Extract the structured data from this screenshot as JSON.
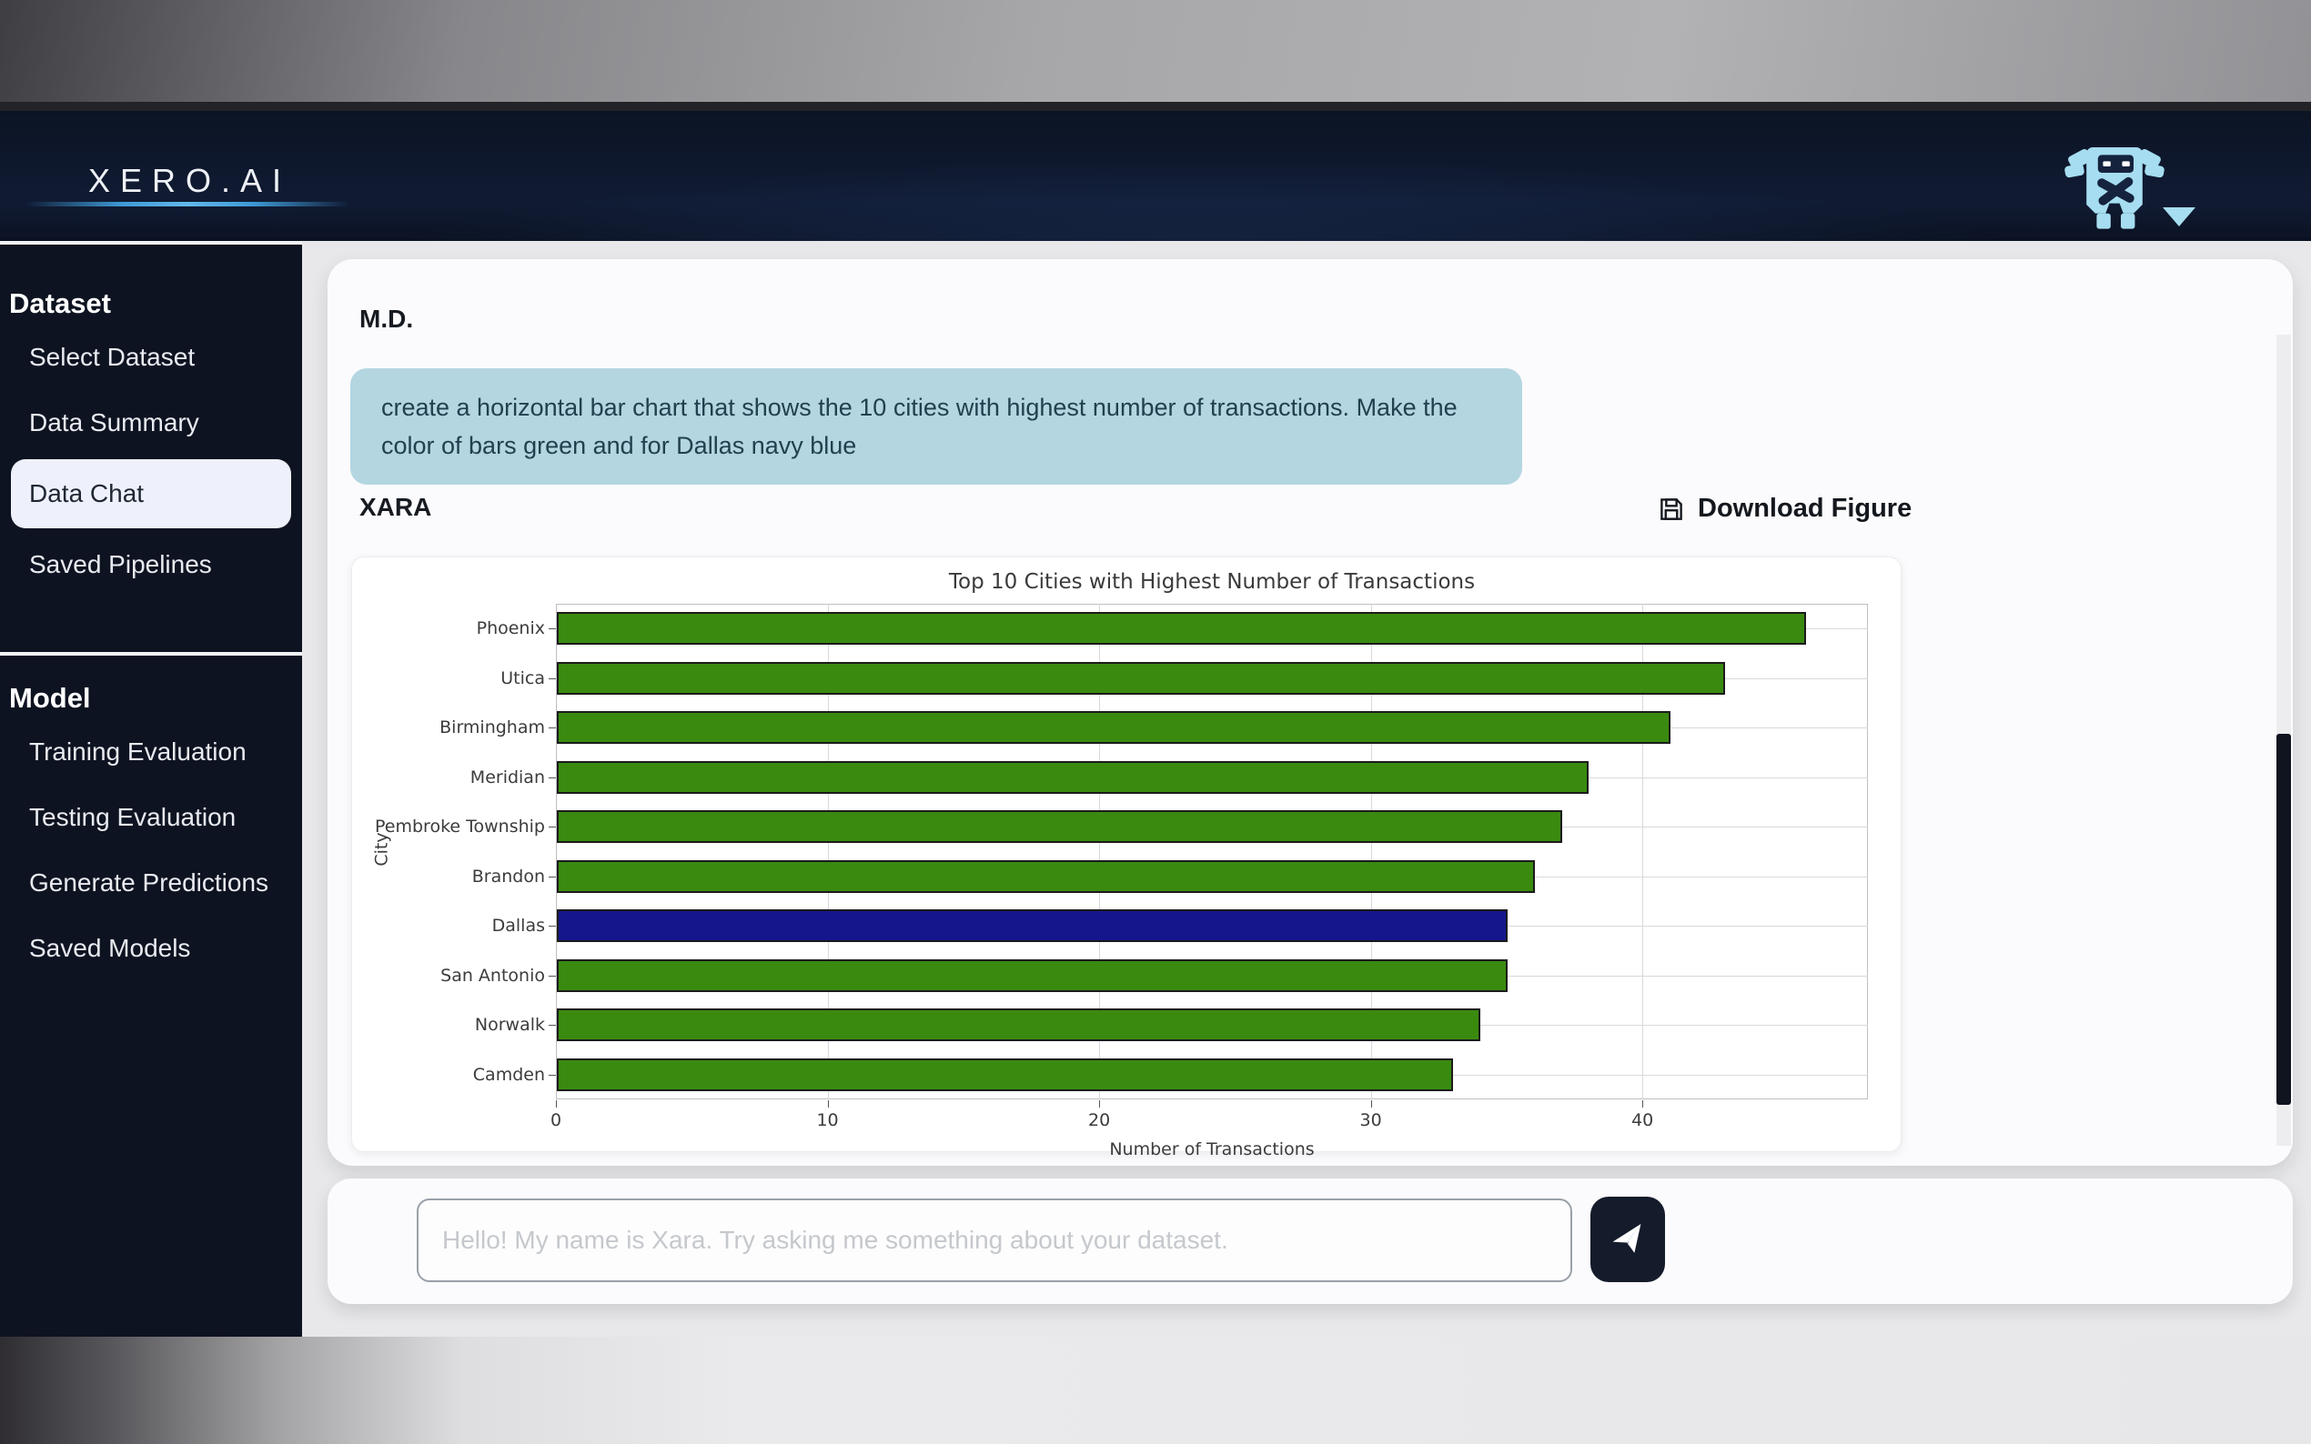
{
  "header": {
    "logo": "XERO.AI"
  },
  "sidebar": {
    "sections": [
      {
        "title": "Dataset",
        "items": [
          {
            "label": "Select Dataset",
            "active": false
          },
          {
            "label": "Data Summary",
            "active": false
          },
          {
            "label": "Data Chat",
            "active": true
          },
          {
            "label": "Saved Pipelines",
            "active": false
          }
        ]
      },
      {
        "title": "Model",
        "items": [
          {
            "label": "Training Evaluation",
            "active": false
          },
          {
            "label": "Testing Evaluation",
            "active": false
          },
          {
            "label": "Generate Predictions",
            "active": false
          },
          {
            "label": "Saved Models",
            "active": false
          }
        ]
      }
    ]
  },
  "chat": {
    "user_initials": "M.D.",
    "user_message": "create a horizontal bar chart that shows the 10 cities with highest number of transactions. Make the color of bars green and for Dallas navy blue",
    "assistant_name": "XARA",
    "download_label": "Download Figure"
  },
  "input": {
    "placeholder": "Hello! My name is Xara. Try asking me something about your dataset."
  },
  "chart_data": {
    "type": "bar",
    "orientation": "horizontal",
    "title": "Top 10 Cities with Highest Number of Transactions",
    "xlabel": "Number of Transactions",
    "ylabel": "City",
    "categories": [
      "Phoenix",
      "Utica",
      "Birmingham",
      "Meridian",
      "Pembroke Township",
      "Brandon",
      "Dallas",
      "San Antonio",
      "Norwalk",
      "Camden"
    ],
    "values": [
      46,
      43,
      41,
      38,
      37,
      36,
      35,
      35,
      34,
      33
    ],
    "bar_colors": [
      "#3a8a10",
      "#3a8a10",
      "#3a8a10",
      "#3a8a10",
      "#3a8a10",
      "#3a8a10",
      "#16168c",
      "#3a8a10",
      "#3a8a10",
      "#3a8a10"
    ],
    "xticks": [
      0,
      10,
      20,
      30,
      40
    ],
    "xlim": [
      0,
      48.3
    ],
    "grid": true,
    "legend": false
  },
  "colors": {
    "accent_blue": "#3e9ad6",
    "robot_blue": "#a6ddf0",
    "bubble_bg": "#b4d6e1",
    "bar_green": "#3a8a10",
    "bar_navy": "#16168c",
    "sidebar_bg": "#0e1321",
    "header_bg": "#101b33"
  }
}
